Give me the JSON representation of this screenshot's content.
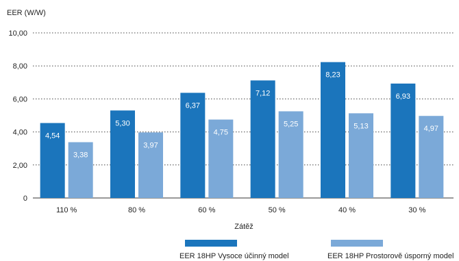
{
  "chart_data": {
    "type": "bar",
    "ylabel": "EER (W/W)",
    "xlabel": "Zátěž",
    "ylim": [
      0,
      10
    ],
    "yticks": [
      "0",
      "2,00",
      "4,00",
      "6,00",
      "8,00",
      "10,00"
    ],
    "categories": [
      "110 %",
      "80 %",
      "60 %",
      "50 %",
      "40 %",
      "30 %"
    ],
    "grid": true,
    "legend_position": "bottom",
    "series": [
      {
        "name": "EER 18HP Vysoce účinný model",
        "color": "#1b75bc",
        "values": [
          4.54,
          5.3,
          6.37,
          7.12,
          8.23,
          6.93
        ],
        "labels": [
          "4,54",
          "5,30",
          "6,37",
          "7,12",
          "8,23",
          "6,93"
        ]
      },
      {
        "name": "EER 18HP Prostorově úsporný model",
        "color": "#7ba9d8",
        "values": [
          3.38,
          3.97,
          4.75,
          5.25,
          5.13,
          4.97
        ],
        "labels": [
          "3,38",
          "3,97",
          "4,75",
          "5,25",
          "5,13",
          "4,97"
        ]
      }
    ]
  }
}
